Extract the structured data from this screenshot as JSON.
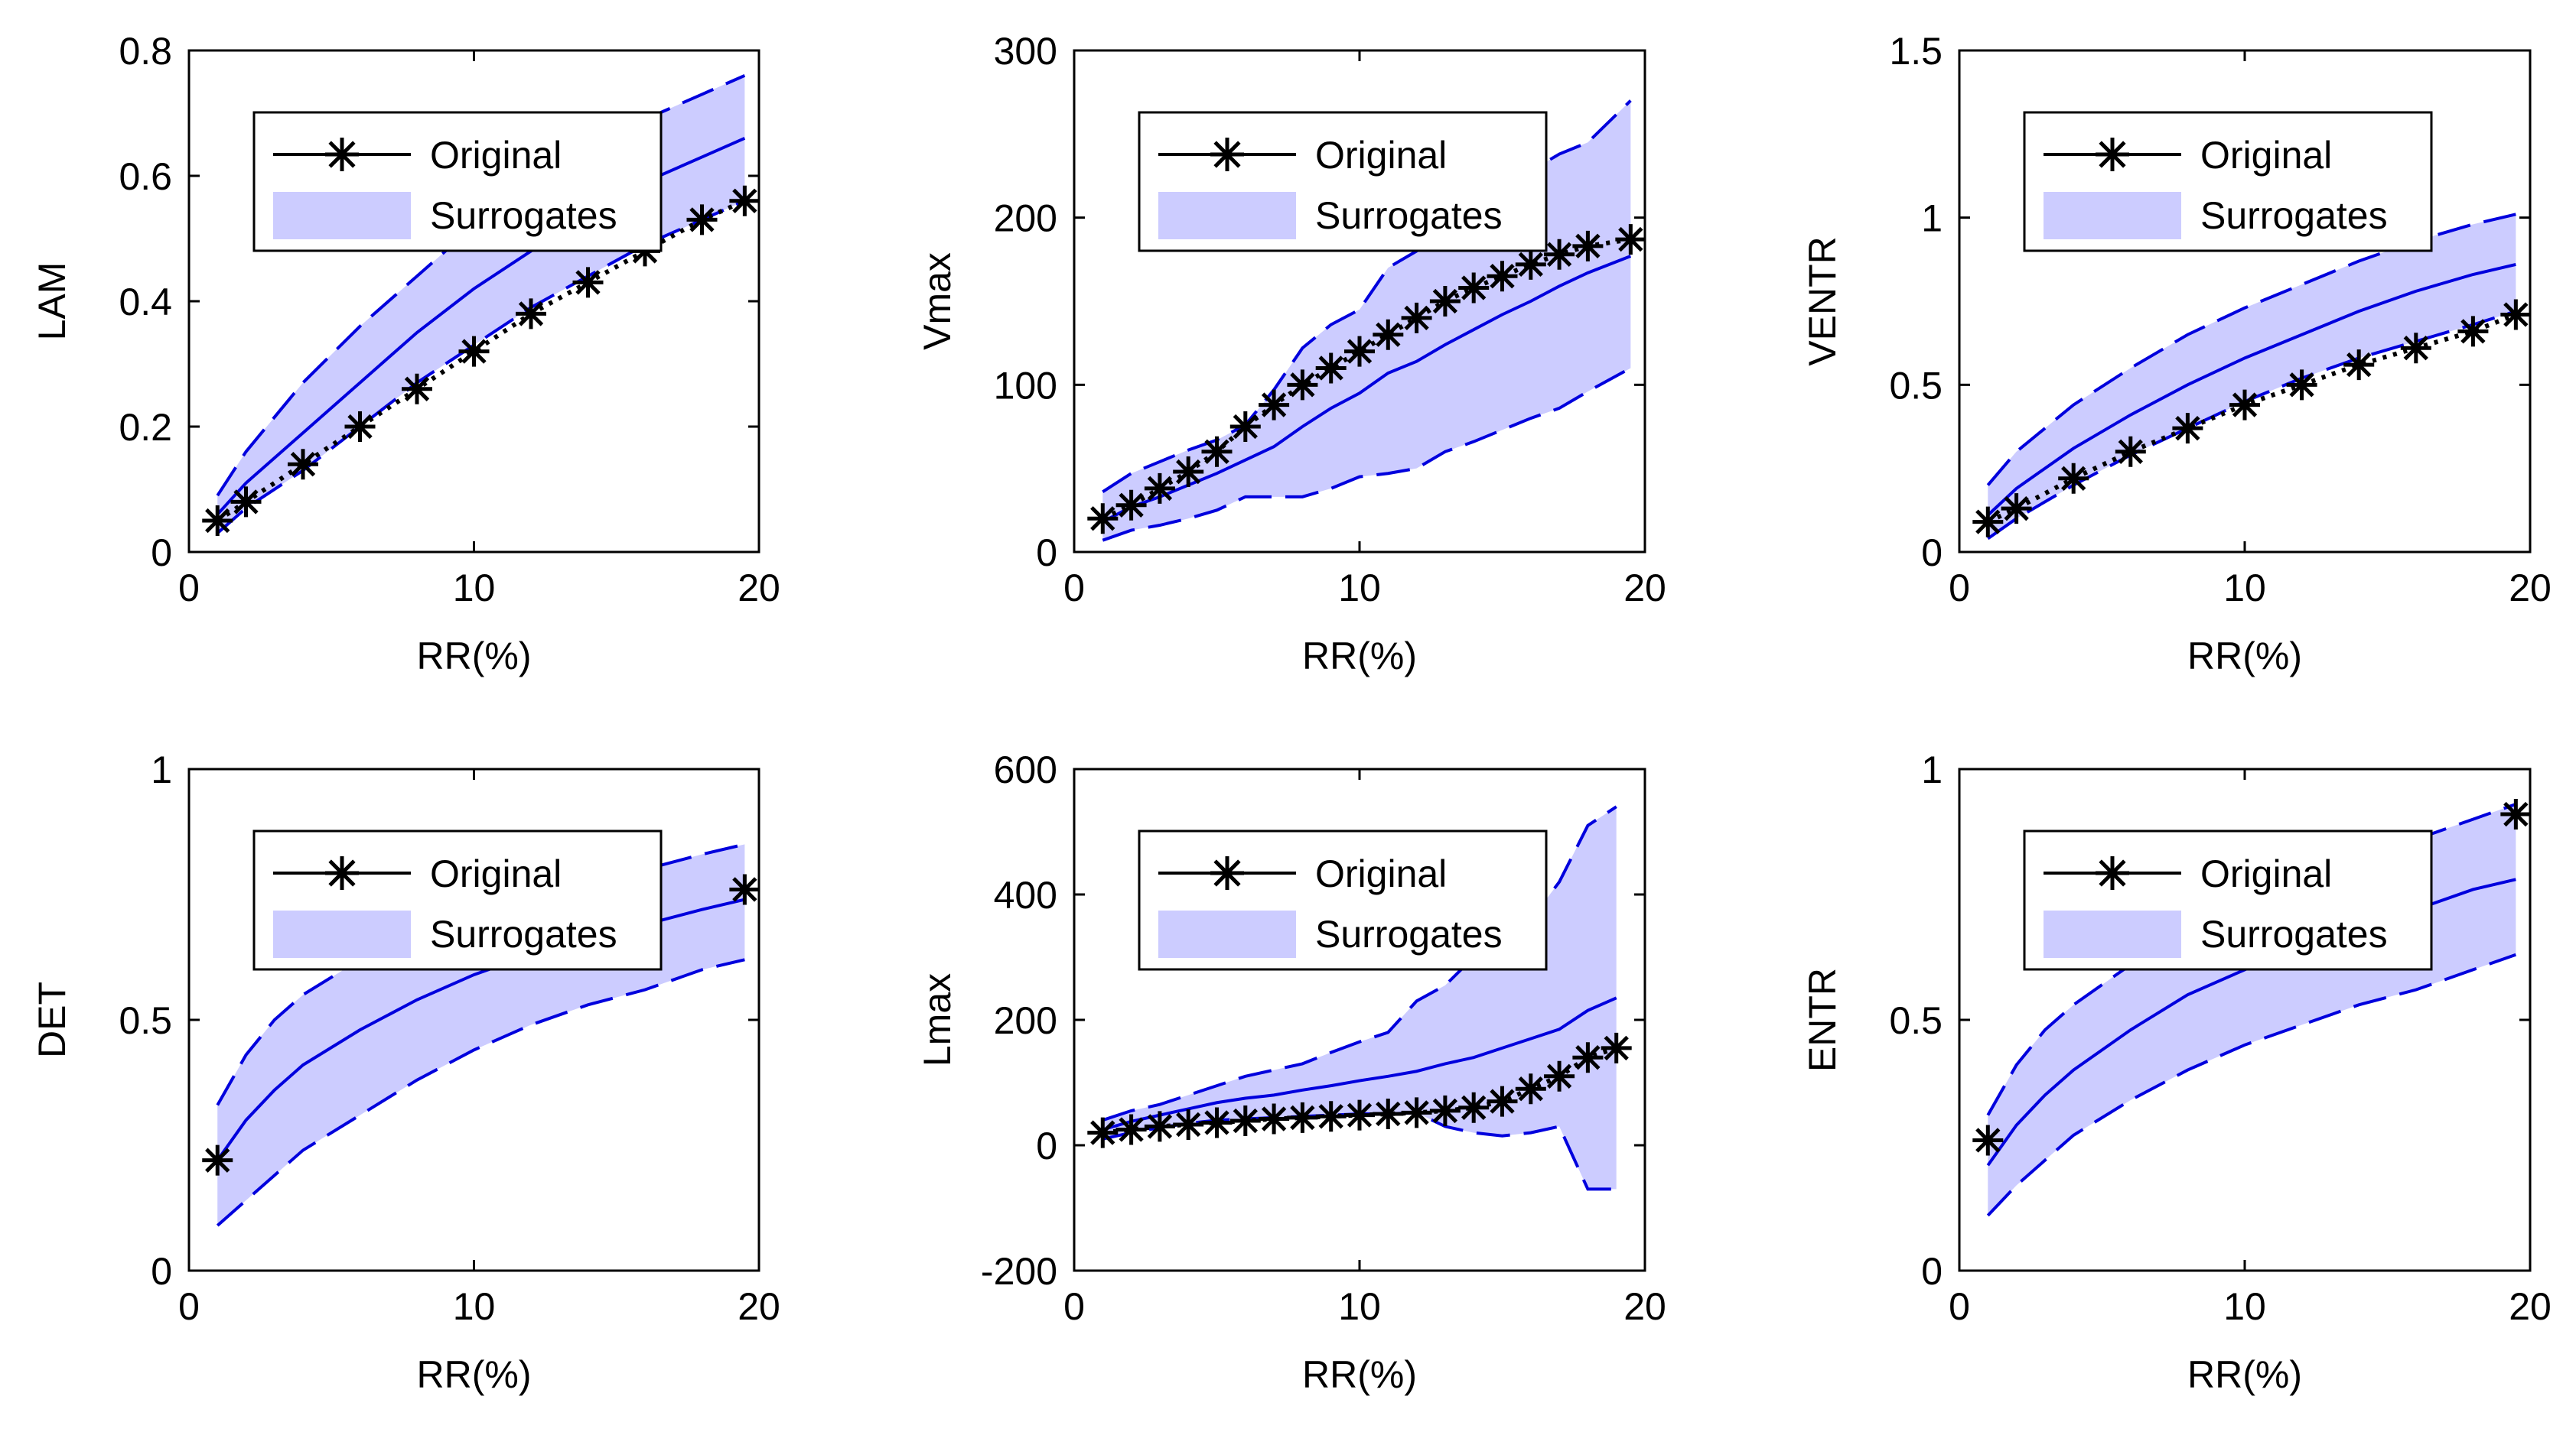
{
  "colors": {
    "band": "#ccccff",
    "line": "#0000dd",
    "original": "#000000",
    "axis": "#000000"
  },
  "chart_data": [
    {
      "type": "line",
      "ylabel": "LAM",
      "xlabel": "RR(%)",
      "xlim": [
        0,
        20
      ],
      "ylim": [
        0,
        0.8
      ],
      "xticks": [
        0,
        10,
        20
      ],
      "xtick_labels": [
        "0",
        "10",
        "20"
      ],
      "yticks": [
        0,
        0.2,
        0.4,
        0.6,
        0.8
      ],
      "ytick_labels": [
        "0",
        "0.2",
        "0.4",
        "0.6",
        "0.8"
      ],
      "legend": {
        "original": "Original",
        "surrogates": "Surrogates",
        "placement": "top-left"
      },
      "x": [
        1,
        2,
        4,
        6,
        8,
        10,
        12,
        14,
        16,
        18,
        19.5
      ],
      "series": [
        {
          "name": "Surrogates mean",
          "values": [
            0.06,
            0.11,
            0.19,
            0.27,
            0.35,
            0.42,
            0.48,
            0.54,
            0.59,
            0.63,
            0.66
          ]
        },
        {
          "name": "Surrogates upper",
          "values": [
            0.09,
            0.16,
            0.27,
            0.36,
            0.44,
            0.52,
            0.58,
            0.64,
            0.69,
            0.73,
            0.76
          ]
        },
        {
          "name": "Surrogates lower",
          "values": [
            0.03,
            0.07,
            0.13,
            0.2,
            0.27,
            0.33,
            0.39,
            0.44,
            0.49,
            0.53,
            0.56
          ]
        },
        {
          "name": "Original",
          "values": [
            0.05,
            0.08,
            0.14,
            0.2,
            0.26,
            0.32,
            0.38,
            0.43,
            0.48,
            0.53,
            0.56
          ]
        }
      ]
    },
    {
      "type": "line",
      "ylabel": "Vmax",
      "xlabel": "RR(%)",
      "xlim": [
        0,
        20
      ],
      "ylim": [
        0,
        300
      ],
      "xticks": [
        0,
        10,
        20
      ],
      "xtick_labels": [
        "0",
        "10",
        "20"
      ],
      "yticks": [
        0,
        100,
        200,
        300
      ],
      "ytick_labels": [
        "0",
        "100",
        "200",
        "300"
      ],
      "legend": {
        "original": "Original",
        "surrogates": "Surrogates",
        "placement": "top-left"
      },
      "x": [
        1,
        2,
        3,
        4,
        5,
        6,
        7,
        8,
        9,
        10,
        11,
        12,
        13,
        14,
        15,
        16,
        17,
        18,
        19.5
      ],
      "series": [
        {
          "name": "Surrogates mean",
          "values": [
            18,
            27,
            33,
            40,
            47,
            55,
            63,
            75,
            86,
            95,
            107,
            114,
            124,
            133,
            142,
            150,
            159,
            167,
            177
          ]
        },
        {
          "name": "Surrogates upper",
          "values": [
            36,
            47,
            54,
            61,
            67,
            76,
            97,
            122,
            136,
            145,
            170,
            180,
            192,
            205,
            215,
            228,
            238,
            245,
            270
          ]
        },
        {
          "name": "Surrogates lower",
          "values": [
            7,
            13,
            16,
            20,
            25,
            33,
            33,
            33,
            38,
            45,
            47,
            50,
            60,
            66,
            73,
            80,
            86,
            96,
            110
          ]
        },
        {
          "name": "Original",
          "values": [
            20,
            28,
            38,
            48,
            60,
            75,
            88,
            100,
            110,
            120,
            130,
            140,
            150,
            158,
            165,
            172,
            178,
            183,
            187
          ]
        }
      ]
    },
    {
      "type": "line",
      "ylabel": "VENTR",
      "xlabel": "RR(%)",
      "xlim": [
        0,
        20
      ],
      "ylim": [
        0,
        1.5
      ],
      "xticks": [
        0,
        10,
        20
      ],
      "xtick_labels": [
        "0",
        "10",
        "20"
      ],
      "yticks": [
        0,
        0.5,
        1,
        1.5
      ],
      "ytick_labels": [
        "0",
        "0.5",
        "1",
        "1.5"
      ],
      "legend": {
        "original": "Original",
        "surrogates": "Surrogates",
        "placement": "top-left"
      },
      "x": [
        1,
        2,
        4,
        6,
        8,
        10,
        12,
        14,
        16,
        18,
        19.5
      ],
      "series": [
        {
          "name": "Surrogates mean",
          "values": [
            0.11,
            0.19,
            0.31,
            0.41,
            0.5,
            0.58,
            0.65,
            0.72,
            0.78,
            0.83,
            0.86
          ]
        },
        {
          "name": "Surrogates upper",
          "values": [
            0.2,
            0.3,
            0.44,
            0.55,
            0.65,
            0.73,
            0.8,
            0.87,
            0.93,
            0.98,
            1.01
          ]
        },
        {
          "name": "Surrogates lower",
          "values": [
            0.04,
            0.1,
            0.2,
            0.29,
            0.37,
            0.45,
            0.52,
            0.58,
            0.63,
            0.68,
            0.72
          ]
        },
        {
          "name": "Original",
          "values": [
            0.09,
            0.13,
            0.22,
            0.3,
            0.37,
            0.44,
            0.5,
            0.56,
            0.61,
            0.66,
            0.71
          ]
        }
      ]
    },
    {
      "type": "line",
      "ylabel": "DET",
      "xlabel": "RR(%)",
      "xlim": [
        0,
        20
      ],
      "ylim": [
        0,
        1
      ],
      "xticks": [
        0,
        10,
        20
      ],
      "xtick_labels": [
        "0",
        "10",
        "20"
      ],
      "yticks": [
        0,
        0.5,
        1
      ],
      "ytick_labels": [
        "0",
        "0.5",
        "1"
      ],
      "legend": {
        "original": "Original",
        "surrogates": "Surrogates",
        "placement": "top-left"
      },
      "x": [
        1,
        2,
        3,
        4,
        6,
        8,
        10,
        12,
        14,
        16,
        18,
        19.5
      ],
      "series": [
        {
          "name": "Surrogates mean",
          "values": [
            0.22,
            0.3,
            0.36,
            0.41,
            0.48,
            0.54,
            0.59,
            0.63,
            0.66,
            0.69,
            0.72,
            0.74
          ]
        },
        {
          "name": "Surrogates upper",
          "values": [
            0.33,
            0.43,
            0.5,
            0.55,
            0.62,
            0.67,
            0.71,
            0.74,
            0.77,
            0.8,
            0.83,
            0.85
          ]
        },
        {
          "name": "Surrogates lower",
          "values": [
            0.09,
            0.14,
            0.19,
            0.24,
            0.31,
            0.38,
            0.44,
            0.49,
            0.53,
            0.56,
            0.6,
            0.62
          ]
        },
        {
          "name": "Original",
          "values": [
            0.22,
            null,
            null,
            null,
            null,
            null,
            null,
            null,
            null,
            null,
            null,
            0.76
          ]
        }
      ]
    },
    {
      "type": "line",
      "ylabel": "Lmax",
      "xlabel": "RR(%)",
      "xlim": [
        0,
        20
      ],
      "ylim": [
        -200,
        600
      ],
      "xticks": [
        0,
        10,
        20
      ],
      "xtick_labels": [
        "0",
        "10",
        "20"
      ],
      "yticks": [
        -200,
        0,
        200,
        400,
        600
      ],
      "ytick_labels": [
        "-200",
        "0",
        "200",
        "400",
        "600"
      ],
      "legend": {
        "original": "Original",
        "surrogates": "Surrogates",
        "placement": "top-left"
      },
      "x": [
        1,
        2,
        3,
        4,
        5,
        6,
        7,
        8,
        9,
        10,
        11,
        12,
        13,
        14,
        15,
        16,
        17,
        18,
        19
      ],
      "series": [
        {
          "name": "Surrogates mean",
          "values": [
            25,
            38,
            48,
            58,
            68,
            75,
            80,
            88,
            95,
            103,
            110,
            118,
            130,
            140,
            155,
            170,
            185,
            215,
            235
          ]
        },
        {
          "name": "Surrogates upper",
          "values": [
            40,
            55,
            65,
            80,
            95,
            110,
            120,
            130,
            148,
            165,
            180,
            230,
            255,
            300,
            330,
            360,
            420,
            510,
            540
          ]
        },
        {
          "name": "Surrogates lower",
          "values": [
            10,
            20,
            28,
            35,
            40,
            42,
            44,
            46,
            48,
            50,
            50,
            52,
            30,
            20,
            15,
            20,
            30,
            -70,
            -70
          ]
        },
        {
          "name": "Original",
          "values": [
            20,
            25,
            30,
            33,
            36,
            39,
            42,
            44,
            46,
            48,
            50,
            52,
            55,
            60,
            70,
            90,
            110,
            140,
            155
          ]
        }
      ]
    },
    {
      "type": "line",
      "ylabel": "ENTR",
      "xlabel": "RR(%)",
      "xlim": [
        0,
        20
      ],
      "ylim": [
        0,
        1
      ],
      "xticks": [
        0,
        10,
        20
      ],
      "xtick_labels": [
        "0",
        "10",
        "20"
      ],
      "yticks": [
        0,
        0.5,
        1
      ],
      "ytick_labels": [
        "0",
        "0.5",
        "1"
      ],
      "legend": {
        "original": "Original",
        "surrogates": "Surrogates",
        "placement": "top-left"
      },
      "x": [
        1,
        2,
        3,
        4,
        6,
        8,
        10,
        12,
        14,
        16,
        18,
        19.5
      ],
      "series": [
        {
          "name": "Surrogates mean",
          "values": [
            0.21,
            0.29,
            0.35,
            0.4,
            0.48,
            0.55,
            0.6,
            0.65,
            0.69,
            0.72,
            0.76,
            0.78
          ]
        },
        {
          "name": "Surrogates upper",
          "values": [
            0.31,
            0.41,
            0.48,
            0.53,
            0.61,
            0.68,
            0.73,
            0.78,
            0.82,
            0.86,
            0.9,
            0.93
          ]
        },
        {
          "name": "Surrogates lower",
          "values": [
            0.11,
            0.17,
            0.22,
            0.27,
            0.34,
            0.4,
            0.45,
            0.49,
            0.53,
            0.56,
            0.6,
            0.63
          ]
        },
        {
          "name": "Original",
          "values": [
            0.26,
            null,
            null,
            null,
            null,
            null,
            null,
            null,
            null,
            null,
            null,
            0.91
          ]
        }
      ]
    }
  ]
}
